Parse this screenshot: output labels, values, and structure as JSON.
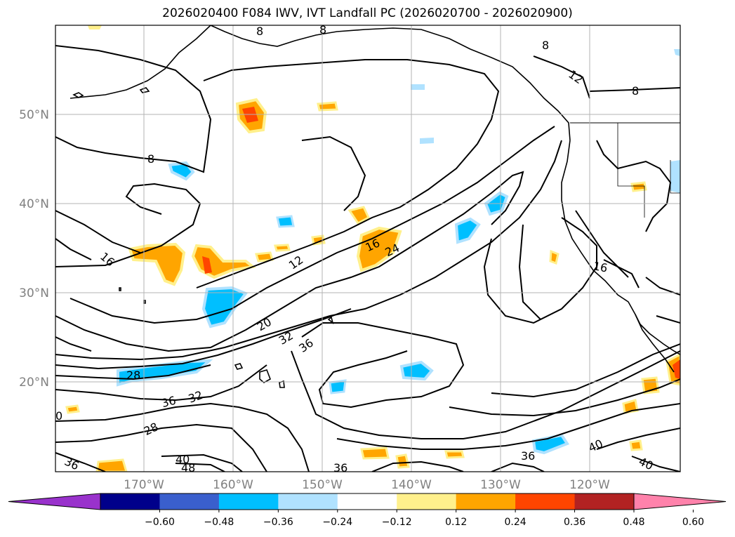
{
  "title": "2026020400 F084 IWV, IVT Landfall PC (2026020700 - 2026020900)",
  "lat_labels": [
    "50°N",
    "40°N",
    "30°N",
    "20°N"
  ],
  "lon_labels": [
    "170°W",
    "160°W",
    "150°W",
    "140°W",
    "130°W",
    "120°W"
  ],
  "colorbar": {
    "colors": [
      "#9932cc",
      "#00008b",
      "#3a5fcd",
      "#00bfff",
      "#b0e2ff",
      "#ffffff",
      "#fff08c",
      "#ffa500",
      "#ff4500",
      "#b22222",
      "#ff82ab"
    ],
    "ticks": [
      "−0.60",
      "−0.48",
      "−0.36",
      "−0.24",
      "−0.12",
      "0.12",
      "0.24",
      "0.36",
      "0.48",
      "0.60"
    ]
  },
  "contour_labels": [
    {
      "text": "8"
    },
    {
      "text": "8"
    },
    {
      "text": "8"
    },
    {
      "text": "12"
    },
    {
      "text": "8"
    },
    {
      "text": "16"
    },
    {
      "text": "12"
    },
    {
      "text": "16"
    },
    {
      "text": "24"
    },
    {
      "text": "20"
    },
    {
      "text": "32"
    },
    {
      "text": "36"
    },
    {
      "text": "28"
    },
    {
      "text": "36"
    },
    {
      "text": "32"
    },
    {
      "text": "28"
    },
    {
      "text": "36"
    },
    {
      "text": "40"
    },
    {
      "text": "48"
    },
    {
      "text": "36"
    },
    {
      "text": "40"
    },
    {
      "text": "40"
    },
    {
      "text": "36"
    },
    {
      "text": "16"
    },
    {
      "text": "8"
    },
    {
      "text": "0"
    }
  ]
}
